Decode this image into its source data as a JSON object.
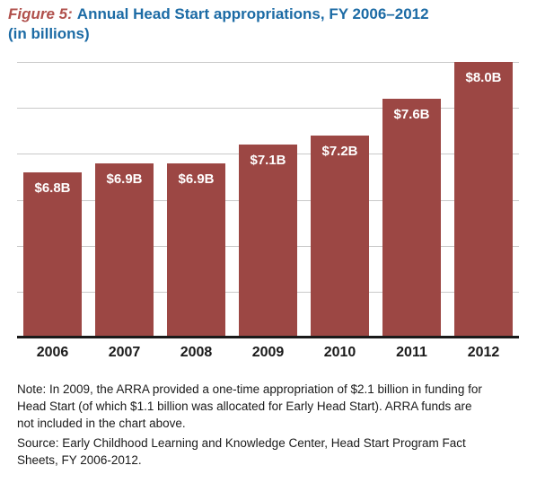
{
  "title": {
    "figure_label": "Figure 5:",
    "line1_rest": "Annual Head Start appropriations, FY 2006–2012",
    "line2": "(in billions)"
  },
  "colors": {
    "bar": "#9C4744",
    "figure_label": "#B0504C",
    "title": "#1C6BA5",
    "gridline": "#C9C9C9",
    "axis": "#1A1A1A",
    "text": "#1A1A1A"
  },
  "chart_data": {
    "type": "bar",
    "title": "Figure 5: Annual Head Start appropriations, FY 2006–2012 (in billions)",
    "categories": [
      "2006",
      "2007",
      "2008",
      "2009",
      "2010",
      "2011",
      "2012"
    ],
    "values": [
      6.8,
      6.9,
      6.9,
      7.1,
      7.2,
      7.6,
      8.0
    ],
    "bar_labels": [
      "$6.8B",
      "$6.9B",
      "$6.9B",
      "$7.1B",
      "$7.2B",
      "$7.6B",
      "$8.0B"
    ],
    "xlabel": "",
    "ylabel": "",
    "ylim": [
      5.0,
      8.0
    ],
    "gridline_step": 0.5,
    "grid": "horizontal",
    "legend": "none",
    "bar_color": "#9C4744",
    "value_label_position": "inside-top",
    "y_axis_labels_visible": false
  },
  "notes": {
    "note": "Note: In 2009, the ARRA provided a one-time appropriation of $2.1 billion in funding for Head Start (of which $1.1 billion was allocated for Early Head Start). ARRA funds are not included in the chart above.",
    "source": "Source: Early Childhood Learning and Knowledge Center, Head Start Program Fact Sheets, FY 2006-2012."
  }
}
